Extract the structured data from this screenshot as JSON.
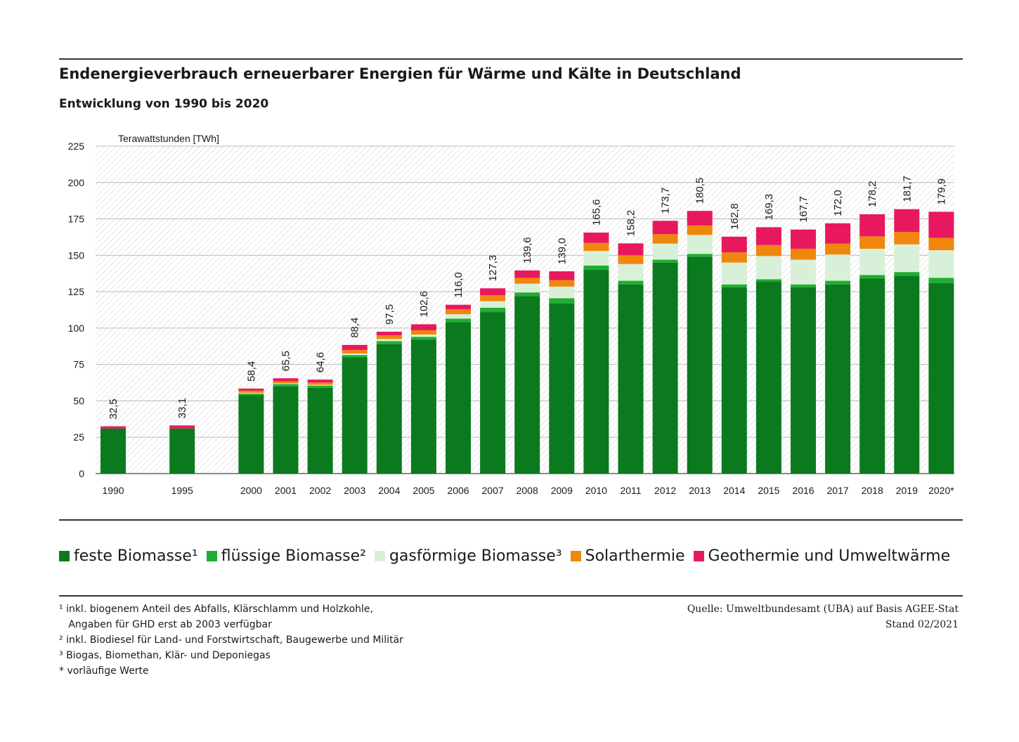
{
  "header": {
    "title": "Endenergieverbrauch erneuerbarer Energien für Wärme und Kälte in Deutschland",
    "subtitle": "Entwicklung von 1990  bis 2020"
  },
  "chart_data": {
    "type": "bar",
    "stacked": true,
    "ylabel": "Terawattstunden [TWh]",
    "ylim": [
      0,
      225
    ],
    "yticks": [
      0,
      25,
      50,
      75,
      100,
      125,
      150,
      175,
      200,
      225
    ],
    "grid": true,
    "categories": [
      "1990",
      "1995",
      "2000",
      "2001",
      "2002",
      "2003",
      "2004",
      "2005",
      "2006",
      "2007",
      "2008",
      "2009",
      "2010",
      "2011",
      "2012",
      "2013",
      "2014",
      "2015",
      "2016",
      "2017",
      "2018",
      "2019",
      "2020*"
    ],
    "totals": [
      "32,5",
      "33,1",
      "58,4",
      "65,5",
      "64,6",
      "88,4",
      "97,5",
      "102,6",
      "116,0",
      "127,3",
      "139,6",
      "139,0",
      "165,6",
      "158,2",
      "173,7",
      "180,5",
      "162,8",
      "169,3",
      "167,7",
      "172,0",
      "178,2",
      "181,7",
      "179,9"
    ],
    "series": [
      {
        "name": "feste Biomasse¹",
        "color": "#0b7a1e",
        "values": [
          31.0,
          31.0,
          54.0,
          60.0,
          59.0,
          80.0,
          89.0,
          92.0,
          104.0,
          111.0,
          122.0,
          117.0,
          140.0,
          130.0,
          145.0,
          149.0,
          128.0,
          132.0,
          128.0,
          130.0,
          134.0,
          136.0,
          131.0
        ]
      },
      {
        "name": "flüssige Biomasse²",
        "color": "#1fae31",
        "values": [
          0.0,
          0.0,
          1.0,
          1.5,
          1.5,
          1.5,
          2.0,
          2.0,
          2.5,
          3.0,
          2.5,
          3.5,
          3.0,
          2.5,
          2.0,
          2.0,
          2.0,
          1.5,
          2.0,
          2.5,
          2.5,
          2.5,
          3.5
        ]
      },
      {
        "name": "gasförmige Biomasse³",
        "color": "#d9f0d8",
        "values": [
          0.0,
          0.0,
          0.5,
          0.5,
          0.5,
          1.0,
          1.5,
          1.5,
          3.0,
          4.5,
          6.0,
          8.0,
          10.0,
          11.5,
          11.0,
          13.0,
          15.0,
          16.0,
          17.0,
          18.0,
          18.0,
          19.0,
          19.0
        ]
      },
      {
        "name": "Solarthermie",
        "color": "#f0870c",
        "values": [
          0.0,
          0.0,
          1.5,
          1.5,
          1.6,
          2.4,
          2.5,
          3.0,
          3.5,
          4.0,
          4.0,
          4.5,
          5.5,
          6.0,
          6.5,
          6.5,
          7.0,
          7.5,
          7.5,
          7.5,
          8.5,
          8.5,
          8.5
        ]
      },
      {
        "name": "Geothermie und Umweltwärme",
        "color": "#e8185e",
        "values": [
          1.5,
          2.1,
          1.4,
          2.0,
          2.0,
          3.5,
          2.5,
          4.1,
          3.0,
          4.8,
          5.1,
          6.0,
          7.1,
          8.2,
          9.2,
          10.0,
          10.8,
          12.3,
          13.2,
          14.0,
          15.2,
          15.7,
          17.9
        ]
      }
    ]
  },
  "legend": [
    {
      "label": "feste Biomasse¹",
      "color": "#0b7a1e"
    },
    {
      "label": "flüssige Biomasse²",
      "color": "#1fae31"
    },
    {
      "label": "gasförmige Biomasse³",
      "color": "#d9f0d8"
    },
    {
      "label": "Solarthermie",
      "color": "#f0870c"
    },
    {
      "label": "Geothermie und Umweltwärme",
      "color": "#e8185e"
    }
  ],
  "footnotes": [
    "¹ inkl. biogenem Anteil des Abfalls, Klärschlamm und Holzkohle,",
    "   Angaben für GHD erst ab 2003 verfügbar",
    "² inkl. Biodiesel für Land- und Forstwirtschaft, Baugewerbe und Militär",
    "³ Biogas, Biomethan, Klär- und Deponiegas",
    "* vorläufige Werte"
  ],
  "source": {
    "line1": "Quelle:  Umweltbundesamt (UBA) auf Basis AGEE-Stat",
    "line2": "Stand 02/2021"
  }
}
